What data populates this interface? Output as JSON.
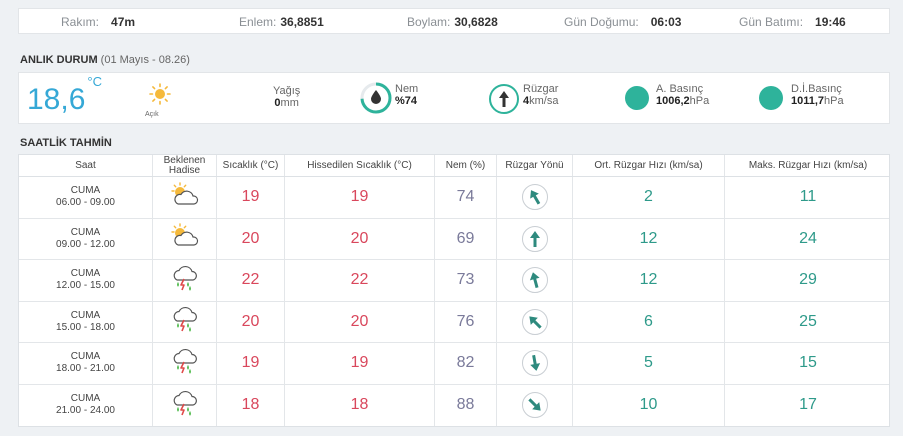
{
  "location_bar": {
    "rakim_label": "Rakım:",
    "rakim_value": "47m",
    "enlem_label": "Enlem:",
    "enlem_value": "36,8851",
    "boylam_label": "Boylam:",
    "boylam_value": "30,6828",
    "gun_dogumu_label": "Gün Doğumu:",
    "gun_dogumu_value": "06:03",
    "gun_batimi_label": "Gün Batımı:",
    "gun_batimi_value": "19:46"
  },
  "current": {
    "title": "ANLIK DURUM",
    "subtitle": "(01 Mayıs - 08.26)",
    "temperature": "18,6",
    "temp_unit": "°C",
    "condition_icon": "sun-icon",
    "condition": "Açık",
    "yagis_label": "Yağış",
    "yagis_value": "0",
    "yagis_unit": "mm",
    "nem_label": "Nem",
    "nem_value": "%74",
    "nem_fraction": 0.74,
    "ruzgar_label": "Rüzgar",
    "ruzgar_value": "4",
    "ruzgar_unit": "km/sa",
    "abasinc_label": "A. Basınç",
    "abasinc_value": "1006,2",
    "abasinc_unit": "hPa",
    "dibasinc_label": "D.İ.Basınç",
    "dibasinc_value": "1011,7",
    "dibasinc_unit": "hPa"
  },
  "forecast": {
    "title": "SAATLİK TAHMİN",
    "headers": {
      "saat": "Saat",
      "hadise1": "Beklenen",
      "hadise2": "Hadise",
      "sicaklik": "Sıcaklık (°C)",
      "hissedilen": "Hissedilen Sıcaklık (°C)",
      "nem": "Nem (%)",
      "yon": "Rüzgar Yönü",
      "ort": "Ort. Rüzgar Hızı (km/sa)",
      "maks": "Maks. Rüzgar Hızı (km/sa)"
    },
    "rows": [
      {
        "day": "CUMA",
        "time": "06.00 - 09.00",
        "icon": "partly-cloudy-icon",
        "temp": "19",
        "feels": "19",
        "humidity": "74",
        "wind_deg": 330,
        "wind_avg": "2",
        "wind_max": "11"
      },
      {
        "day": "CUMA",
        "time": "09.00 - 12.00",
        "icon": "partly-cloudy-icon",
        "temp": "20",
        "feels": "20",
        "humidity": "69",
        "wind_deg": 0,
        "wind_avg": "12",
        "wind_max": "24"
      },
      {
        "day": "CUMA",
        "time": "12.00 - 15.00",
        "icon": "thunderstorm-icon",
        "temp": "22",
        "feels": "22",
        "humidity": "73",
        "wind_deg": 345,
        "wind_avg": "12",
        "wind_max": "29"
      },
      {
        "day": "CUMA",
        "time": "15.00 - 18.00",
        "icon": "thunderstorm-icon",
        "temp": "20",
        "feels": "20",
        "humidity": "76",
        "wind_deg": 315,
        "wind_avg": "6",
        "wind_max": "25"
      },
      {
        "day": "CUMA",
        "time": "18.00 - 21.00",
        "icon": "thunderstorm-icon",
        "temp": "19",
        "feels": "19",
        "humidity": "82",
        "wind_deg": 170,
        "wind_avg": "5",
        "wind_max": "15"
      },
      {
        "day": "CUMA",
        "time": "21.00 - 24.00",
        "icon": "thunderstorm-icon",
        "temp": "18",
        "feels": "18",
        "humidity": "88",
        "wind_deg": 135,
        "wind_avg": "10",
        "wind_max": "17"
      }
    ]
  },
  "colors": {
    "accent_blue": "#35a8d6",
    "teal": "#2eb39b",
    "temp_red": "#d9475c",
    "wind_green": "#2e9a8a"
  }
}
